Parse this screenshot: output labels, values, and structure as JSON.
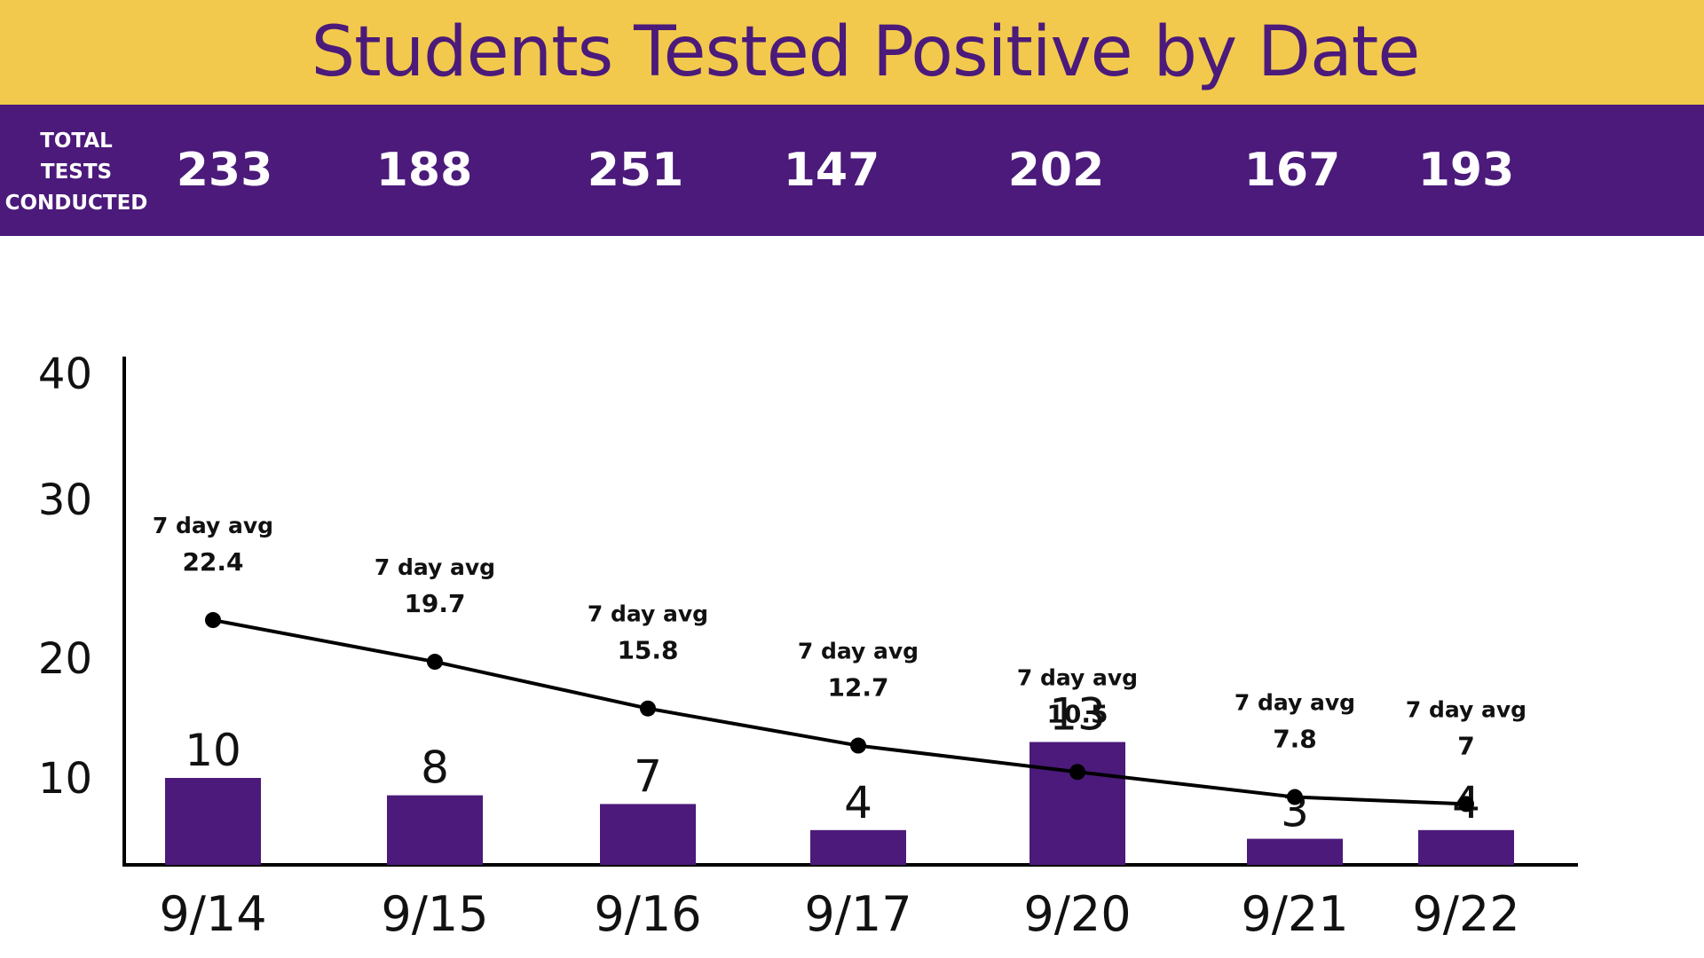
{
  "title": "Students Tested Positive by Date",
  "colors": {
    "title_bar": "#F2C94C",
    "title_text": "#4B1A7A",
    "purple": "#4B1A7A",
    "line": "#000000"
  },
  "tests_label": [
    "TOTAL",
    "TESTS",
    "CONDUCTED"
  ],
  "total_tests": [
    "233",
    "188",
    "251",
    "147",
    "202",
    "167",
    "193"
  ],
  "chart_data": {
    "type": "bar",
    "categories": [
      "9/14",
      "9/15",
      "9/16",
      "9/17",
      "9/20",
      "9/21",
      "9/22"
    ],
    "yticks": [
      10,
      20,
      30,
      40
    ],
    "grid": false,
    "series": [
      {
        "type": "bar",
        "values": [
          10,
          8,
          7,
          4,
          13,
          3,
          4
        ],
        "labels": [
          "10",
          "8",
          "7",
          "4",
          "13",
          "3",
          "4"
        ]
      },
      {
        "name": "7 day avg",
        "type": "line",
        "values": [
          22.4,
          19.7,
          15.8,
          12.7,
          10.5,
          7.8,
          7
        ],
        "labels": [
          "22.4",
          "19.7",
          "15.8",
          "12.7",
          "10.5",
          "7.8",
          "7"
        ]
      }
    ]
  }
}
